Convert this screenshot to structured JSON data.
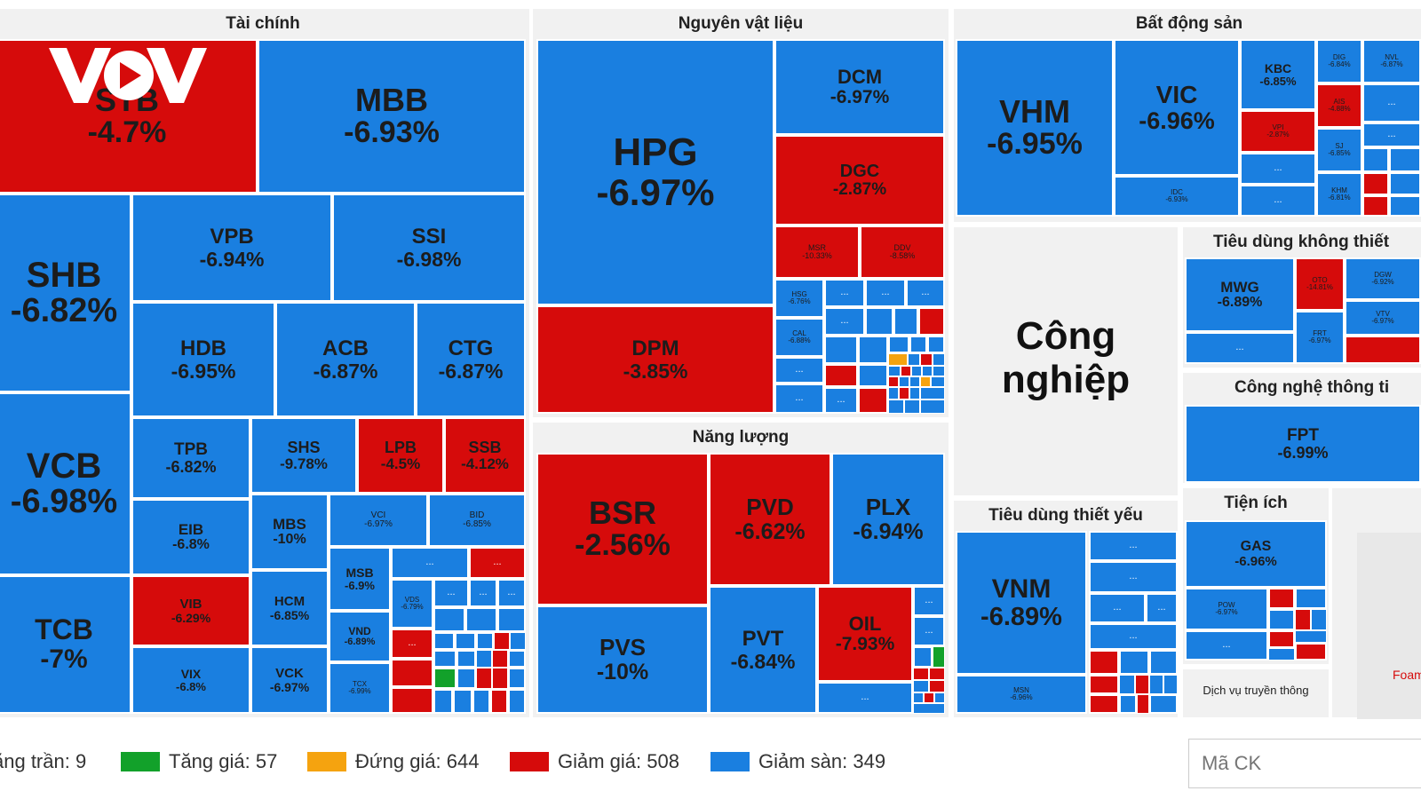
{
  "colors": {
    "tang_tran": "#7b2cbf",
    "tang_gia": "#12a12a",
    "dung_gia": "#f5a30f",
    "giam_gia": "#d60b0b",
    "giam_san": "#1a7fe0",
    "section_bg": "#f1f1f1",
    "logo": "#ffffff"
  },
  "logo_text": "VOV",
  "sections": {
    "tai_chinh": "Tài chính",
    "nguyen_vat_lieu": "Nguyên vật liệu",
    "bat_dong_san": "Bất động sản",
    "nang_luong": "Năng lượng",
    "cong_nghiep": "Công nghiệp",
    "tieu_dung_khong_thiet_yeu": "Tiêu dùng không thiết",
    "cong_nghe_thong_tin": "Công nghệ thông ti",
    "tieu_dung_thiet_yeu": "Tiêu dùng thiết yếu",
    "tien_ich": "Tiện ích",
    "dich_vu_truyen_thong": "Dịch vụ truyền thông",
    "foam_label": "Foam"
  },
  "chart_data": {
    "type": "heatmap",
    "cell_color_legend": [
      "Tăng trần",
      "Tăng giá",
      "Đứng giá",
      "Giảm giá",
      "Giảm sàn"
    ],
    "tiles": [
      {
        "id": "STB",
        "symbol": "STB",
        "change": "-4.7%",
        "status": "red"
      },
      {
        "id": "MBB",
        "symbol": "MBB",
        "change": "-6.93%",
        "status": "blue"
      },
      {
        "id": "SHB",
        "symbol": "SHB",
        "change": "-6.82%",
        "status": "blue"
      },
      {
        "id": "VPB",
        "symbol": "VPB",
        "change": "-6.94%",
        "status": "blue"
      },
      {
        "id": "SSI",
        "symbol": "SSI",
        "change": "-6.98%",
        "status": "blue"
      },
      {
        "id": "HDB",
        "symbol": "HDB",
        "change": "-6.95%",
        "status": "blue"
      },
      {
        "id": "ACB",
        "symbol": "ACB",
        "change": "-6.87%",
        "status": "blue"
      },
      {
        "id": "CTG",
        "symbol": "CTG",
        "change": "-6.87%",
        "status": "blue"
      },
      {
        "id": "VCB",
        "symbol": "VCB",
        "change": "-6.98%",
        "status": "blue"
      },
      {
        "id": "TPB",
        "symbol": "TPB",
        "change": "-6.82%",
        "status": "blue"
      },
      {
        "id": "SHS",
        "symbol": "SHS",
        "change": "-9.78%",
        "status": "blue"
      },
      {
        "id": "LPB",
        "symbol": "LPB",
        "change": "-4.5%",
        "status": "red"
      },
      {
        "id": "SSB",
        "symbol": "SSB",
        "change": "-4.12%",
        "status": "red"
      },
      {
        "id": "EIB",
        "symbol": "EIB",
        "change": "-6.8%",
        "status": "blue"
      },
      {
        "id": "MBS",
        "symbol": "MBS",
        "change": "-10%",
        "status": "blue"
      },
      {
        "id": "VCI",
        "symbol": "VCI",
        "change": "-6.97%",
        "status": "blue"
      },
      {
        "id": "BID",
        "symbol": "BID",
        "change": "-6.85%",
        "status": "blue"
      },
      {
        "id": "TCB",
        "symbol": "TCB",
        "change": "-7%",
        "status": "blue"
      },
      {
        "id": "VIB",
        "symbol": "VIB",
        "change": "-6.29%",
        "status": "red"
      },
      {
        "id": "HCM",
        "symbol": "HCM",
        "change": "-6.85%",
        "status": "blue"
      },
      {
        "id": "MSB",
        "symbol": "MSB",
        "change": "-6.9%",
        "status": "blue"
      },
      {
        "id": "VDS",
        "symbol": "VDS",
        "change": "-6.79%",
        "status": "blue"
      },
      {
        "id": "VND",
        "symbol": "VND",
        "change": "-6.89%",
        "status": "blue"
      },
      {
        "id": "VIX",
        "symbol": "VIX",
        "change": "-6.8%",
        "status": "blue"
      },
      {
        "id": "VCK",
        "symbol": "VCK",
        "change": "-6.97%",
        "status": "blue"
      },
      {
        "id": "TCX",
        "symbol": "TCX",
        "change": "-6.99%",
        "status": "blue"
      },
      {
        "id": "HPG",
        "symbol": "HPG",
        "change": "-6.97%",
        "status": "blue"
      },
      {
        "id": "DCM",
        "symbol": "DCM",
        "change": "-6.97%",
        "status": "blue"
      },
      {
        "id": "DGC",
        "symbol": "DGC",
        "change": "-2.87%",
        "status": "red"
      },
      {
        "id": "MSR",
        "symbol": "MSR",
        "change": "-10.33%",
        "status": "red"
      },
      {
        "id": "DDV",
        "symbol": "DDV",
        "change": "-8.58%",
        "status": "red"
      },
      {
        "id": "HSG",
        "symbol": "HSG",
        "change": "-6.76%",
        "status": "blue"
      },
      {
        "id": "CAL",
        "symbol": "CAL",
        "change": "-6.88%",
        "status": "blue"
      },
      {
        "id": "DPM",
        "symbol": "DPM",
        "change": "-3.85%",
        "status": "red"
      },
      {
        "id": "BSR",
        "symbol": "BSR",
        "change": "-2.56%",
        "status": "red"
      },
      {
        "id": "PVD",
        "symbol": "PVD",
        "change": "-6.62%",
        "status": "red"
      },
      {
        "id": "PLX",
        "symbol": "PLX",
        "change": "-6.94%",
        "status": "blue"
      },
      {
        "id": "PVS",
        "symbol": "PVS",
        "change": "-10%",
        "status": "blue"
      },
      {
        "id": "PVT",
        "symbol": "PVT",
        "change": "-6.84%",
        "status": "blue"
      },
      {
        "id": "OIL",
        "symbol": "OIL",
        "change": "-7.93%",
        "status": "red"
      },
      {
        "id": "VHM",
        "symbol": "VHM",
        "change": "-6.95%",
        "status": "blue"
      },
      {
        "id": "VIC",
        "symbol": "VIC",
        "change": "-6.96%",
        "status": "blue"
      },
      {
        "id": "KBC",
        "symbol": "KBC",
        "change": "-6.85%",
        "status": "blue"
      },
      {
        "id": "DIG",
        "symbol": "DIG",
        "change": "-6.84%",
        "status": "blue"
      },
      {
        "id": "NVL",
        "symbol": "NVL",
        "change": "-6.87%",
        "status": "blue"
      },
      {
        "id": "VPI",
        "symbol": "VPI",
        "change": "-2.87%",
        "status": "red"
      },
      {
        "id": "AIS",
        "symbol": "AIS",
        "change": "-4.88%",
        "status": "red"
      },
      {
        "id": "SJ",
        "symbol": "SJ",
        "change": "-6.85%",
        "status": "blue"
      },
      {
        "id": "IDC",
        "symbol": "IDC",
        "change": "-6.93%",
        "status": "blue"
      },
      {
        "id": "KHM",
        "symbol": "KHM",
        "change": "-6.81%",
        "status": "blue"
      },
      {
        "id": "MWG",
        "symbol": "MWG",
        "change": "-6.89%",
        "status": "blue"
      },
      {
        "id": "OTO",
        "symbol": "OTO",
        "change": "-14.81%",
        "status": "red"
      },
      {
        "id": "DGW",
        "symbol": "DGW",
        "change": "-6.92%",
        "status": "blue"
      },
      {
        "id": "VTV",
        "symbol": "VTV",
        "change": "-6.97%",
        "status": "blue"
      },
      {
        "id": "FRT",
        "symbol": "FRT",
        "change": "-6.97%",
        "status": "blue"
      },
      {
        "id": "FPT",
        "symbol": "FPT",
        "change": "-6.99%",
        "status": "blue"
      },
      {
        "id": "VNM",
        "symbol": "VNM",
        "change": "-6.89%",
        "status": "blue"
      },
      {
        "id": "MSN",
        "symbol": "MSN",
        "change": "-6.96%",
        "status": "blue"
      },
      {
        "id": "GAS",
        "symbol": "GAS",
        "change": "-6.96%",
        "status": "blue"
      },
      {
        "id": "POW",
        "symbol": "POW",
        "change": "-6.97%",
        "status": "blue"
      }
    ],
    "small_label": "...",
    "legend": [
      {
        "id": "tang_tran",
        "label": "ăng trần: 9",
        "color": "#7b2cbf"
      },
      {
        "id": "tang_gia",
        "label": "Tăng giá: 57",
        "color": "#12a12a"
      },
      {
        "id": "dung_gia",
        "label": "Đứng giá: 644",
        "color": "#f5a30f"
      },
      {
        "id": "giam_gia",
        "label": "Giảm giá: 508",
        "color": "#d60b0b"
      },
      {
        "id": "giam_san",
        "label": "Giảm sàn: 349",
        "color": "#1a7fe0"
      }
    ]
  },
  "search": {
    "placeholder": "Mã CK"
  }
}
